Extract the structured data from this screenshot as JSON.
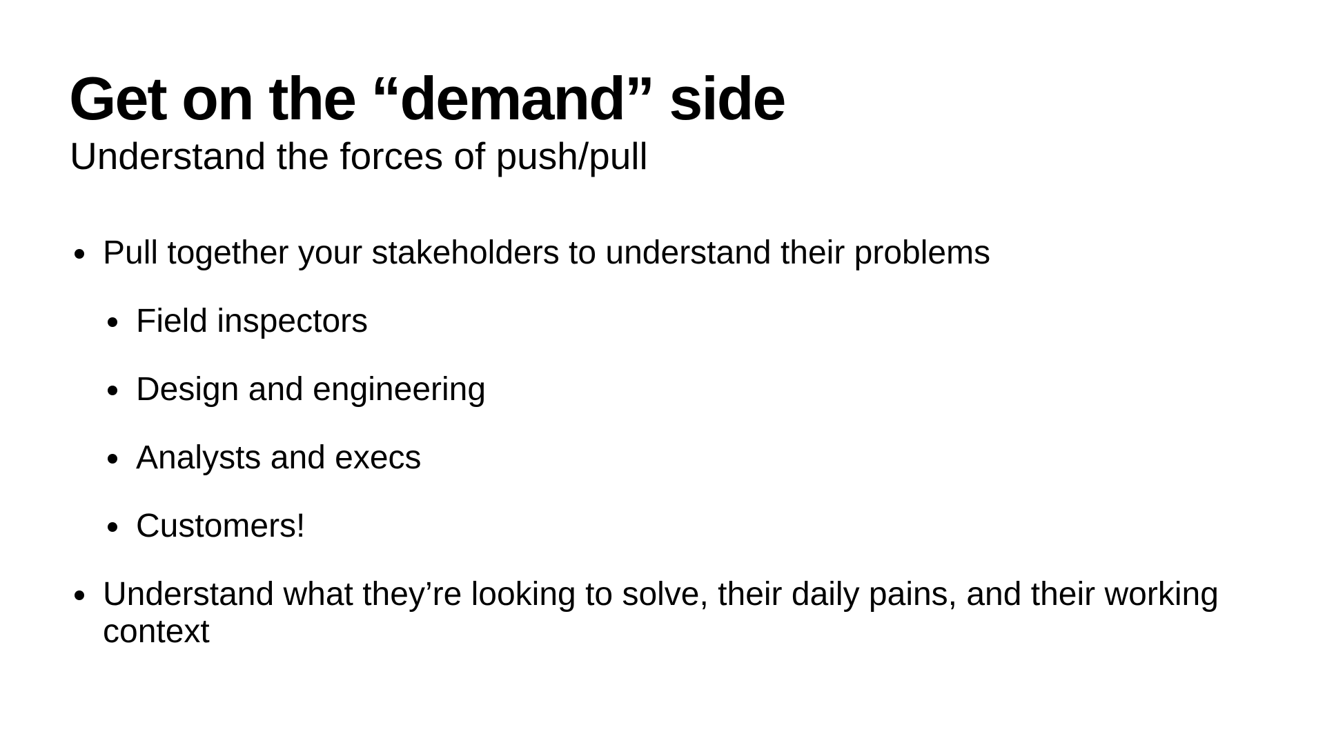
{
  "slide": {
    "title": "Get on the “demand” side",
    "subtitle": "Understand the forces of push/pull",
    "bullets": [
      {
        "level": 0,
        "text": "Pull together your stakeholders to understand their problems"
      },
      {
        "level": 1,
        "text": "Field inspectors"
      },
      {
        "level": 1,
        "text": "Design and engineering"
      },
      {
        "level": 1,
        "text": "Analysts and execs"
      },
      {
        "level": 1,
        "text": "Customers!"
      },
      {
        "level": 0,
        "text": "Understand what they’re looking to solve, their daily pains, and their working context"
      }
    ]
  },
  "colors": {
    "background": "#ffffff",
    "text": "#000000"
  },
  "icons": {
    "bullet": "bullet-dot-icon"
  }
}
